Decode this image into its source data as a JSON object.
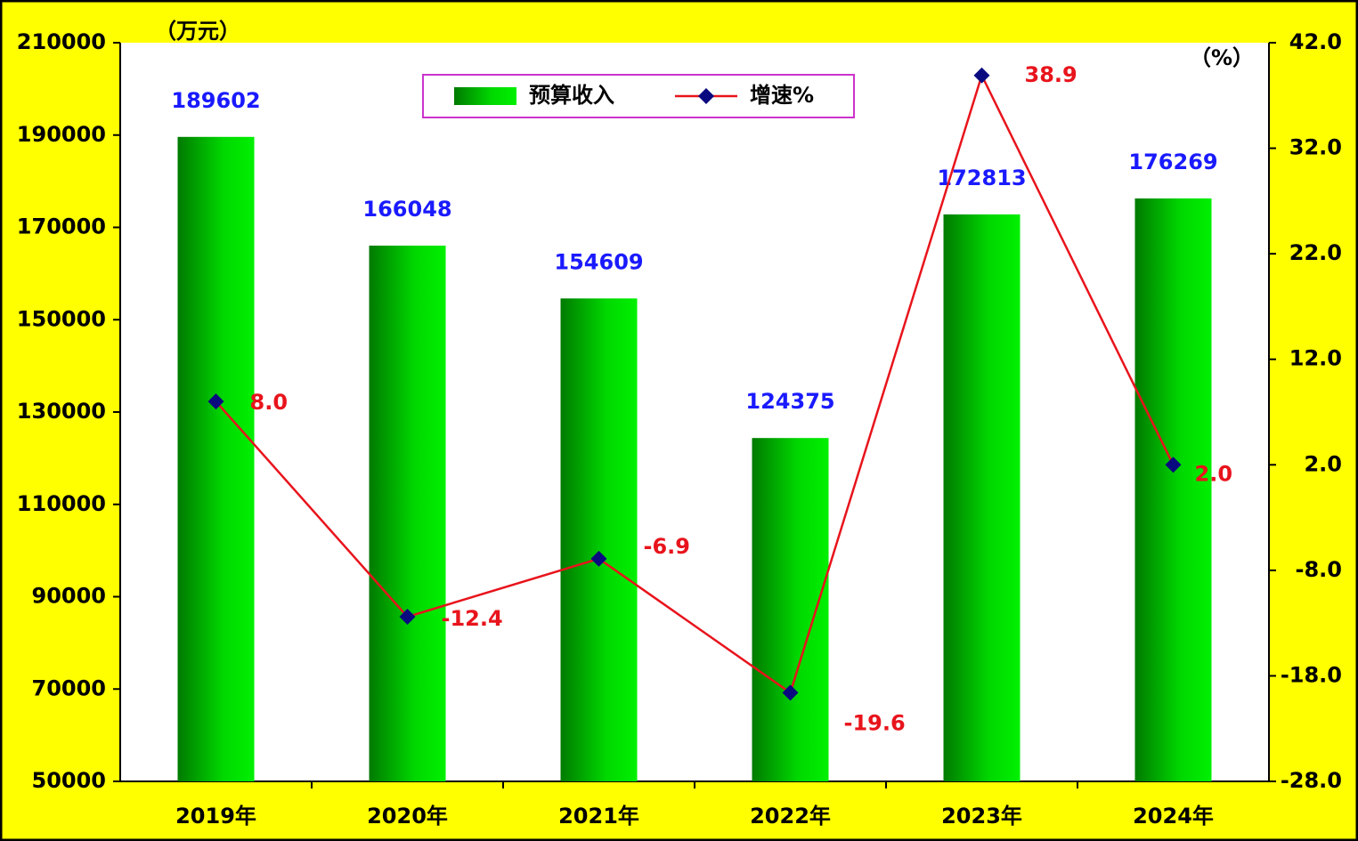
{
  "chart_data": {
    "type": "bar-line",
    "left_unit": "（万元）",
    "right_unit": "（%）",
    "categories": [
      "2019年",
      "2020年",
      "2021年",
      "2022年",
      "2023年",
      "2024年"
    ],
    "series": [
      {
        "name": "预算收入",
        "type": "bar",
        "color": "#00dd00",
        "label_color": "#1a1aff",
        "values": [
          189602,
          166048,
          154609,
          124375,
          172813,
          176269
        ]
      },
      {
        "name": "增速%",
        "type": "line",
        "axis": "y2",
        "color": "#e8141c",
        "marker_color": "#0a0a80",
        "label_color": "#e8141c",
        "values": [
          8.0,
          -12.4,
          -6.9,
          -19.6,
          38.9,
          2.0
        ],
        "value_labels": [
          "8.0",
          "-12.4",
          "-6.9",
          "-19.6",
          "38.9",
          "2.0"
        ]
      }
    ],
    "ylim": [
      50000,
      210000
    ],
    "yticks": [
      50000,
      70000,
      90000,
      110000,
      130000,
      150000,
      170000,
      190000,
      210000
    ],
    "y2lim": [
      -28,
      42
    ],
    "y2ticks": [
      {
        "value": -28,
        "label": "-28.0"
      },
      {
        "value": -18,
        "label": "-18.0"
      },
      {
        "value": -8,
        "label": "-8.0"
      },
      {
        "value": 2,
        "label": "2.0"
      },
      {
        "value": 12,
        "label": "12.0"
      },
      {
        "value": 22,
        "label": "22.0"
      },
      {
        "value": 32,
        "label": "32.0"
      },
      {
        "value": 42,
        "label": "42.0"
      }
    ]
  }
}
